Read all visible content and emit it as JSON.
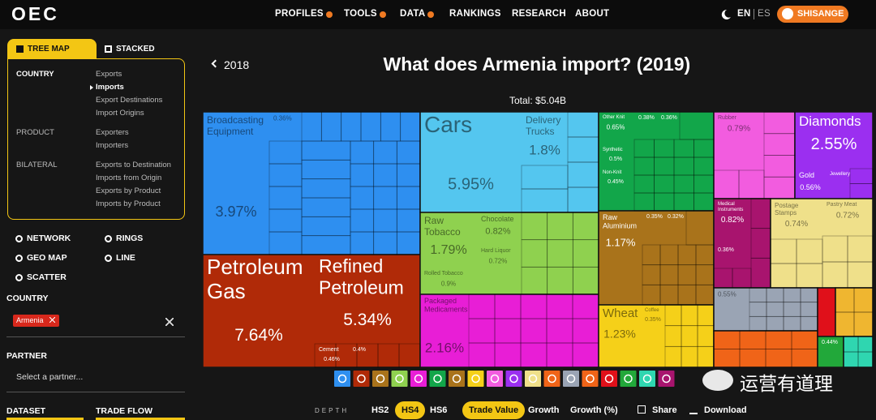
{
  "header": {
    "logo": "OEC",
    "nav": [
      "PROFILES",
      "TOOLS",
      "DATA",
      "RANKINGS",
      "RESEARCH",
      "ABOUT"
    ],
    "lang_en": "EN",
    "lang_es": "ES",
    "user": "SHISANGE"
  },
  "sidebar": {
    "tabs": [
      "TREE MAP",
      "STACKED"
    ],
    "sections": [
      {
        "title": "COUNTRY",
        "items": [
          "Exports",
          "Imports",
          "Export Destinations",
          "Import Origins"
        ]
      },
      {
        "title": "PRODUCT",
        "items": [
          "Exporters",
          "Importers"
        ]
      },
      {
        "title": "BILATERAL",
        "items": [
          "Exports to Destination",
          "Imports from Origin",
          "Exports by Product",
          "Imports by Product"
        ]
      }
    ],
    "charts": [
      "NETWORK",
      "RINGS",
      "GEO MAP",
      "LINE",
      "SCATTER"
    ],
    "country_label": "COUNTRY",
    "country": "Armenia",
    "partner_label": "PARTNER",
    "partner_placeholder": "Select a partner...",
    "dataset_label": "DATASET",
    "trade_flow_label": "TRADE FLOW"
  },
  "main": {
    "back_year": "2018",
    "title": "What does Armenia import? (2019)",
    "total": "Total: $5.04B",
    "tiles": [
      {
        "name": "Broadcasting Equipment",
        "share": "3.97%"
      },
      {
        "share": "0.36%"
      },
      {
        "name": "Cars",
        "share": "5.95%"
      },
      {
        "name": "Delivery Trucks",
        "share": "1.8%"
      },
      {
        "name": "Petroleum Gas",
        "share": "7.64%"
      },
      {
        "name": "Refined Petroleum",
        "share": "5.34%"
      },
      {
        "name": "Cement",
        "share": "0.46%"
      },
      {
        "share": "0.4%"
      },
      {
        "name": "Raw Tobacco",
        "share": "1.79%"
      },
      {
        "name": "Chocolate",
        "share": "0.82%"
      },
      {
        "name": "Hard Liquor",
        "share": "0.72%"
      },
      {
        "name": "Rolled Tobacco",
        "share": "0.9%"
      },
      {
        "name": "Packaged Medicaments",
        "share": "2.16%"
      },
      {
        "name": "Other Knit",
        "share": "0.65%"
      },
      {
        "name": "Synthetic",
        "share": "0.5%"
      },
      {
        "name": "Non-Knit",
        "share": "0.45%"
      },
      {
        "share": "0.38%"
      },
      {
        "share": "0.36%"
      },
      {
        "name": "Raw Aluminium",
        "share": "1.17%"
      },
      {
        "share": "0.35%"
      },
      {
        "share": "0.32%"
      },
      {
        "name": "Wheat",
        "share": "1.23%"
      },
      {
        "name": "Coffee",
        "share": "0.35%"
      },
      {
        "name": "Rubber",
        "share": "0.79%"
      },
      {
        "name": "Diamonds",
        "share": "2.55%"
      },
      {
        "name": "Gold",
        "share": "0.56%"
      },
      {
        "name": "Jewellery"
      },
      {
        "name": "Medical Instruments",
        "share": "0.82%"
      },
      {
        "share": "0.36%"
      },
      {
        "name": "Postage Stamps",
        "share": "0.74%"
      },
      {
        "name": "Pastry Meat",
        "share": "0.72%"
      },
      {
        "share": "0.55%"
      },
      {
        "share": "0.44%"
      }
    ],
    "depth_label": "DEPTH",
    "depths": [
      "HS2",
      "HS4",
      "HS6"
    ],
    "measures": [
      "Trade Value",
      "Growth",
      "Growth (%)"
    ],
    "actions": [
      "Share",
      "Download"
    ]
  },
  "watermark": "运营有道理"
}
